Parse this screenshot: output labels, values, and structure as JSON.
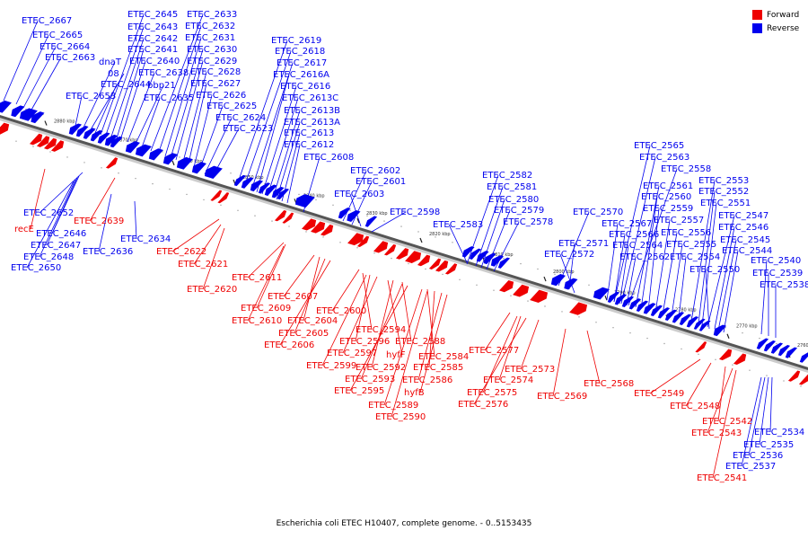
{
  "caption": "Escherichia coli ETEC H10407, complete genome. - 0..5153435",
  "colors": {
    "forward": "#ee0000",
    "reverse": "#0000ee",
    "backbone": "#888888"
  },
  "legend": [
    {
      "label": "Forward",
      "color": "#ee0000"
    },
    {
      "label": "Reverse",
      "color": "#0000ee"
    }
  ],
  "ticks": [
    "2880 kbp",
    "2870 kbp",
    "2860 kbp",
    "2850 kbp",
    "2840 kbp",
    "2830 kbp",
    "2820 kbp",
    "2810 kbp",
    "2800 kbp",
    "2790 kbp",
    "2780 kbp",
    "2770 kbp",
    "2760 kbp"
  ],
  "reverse_labels": [
    "ETEC_2667",
    "ETEC_2665",
    "ETEC_2664",
    "ETEC_2663",
    "ETEC_2653",
    "dnaT",
    "08",
    "ETEC_2644",
    "ETEC_2645",
    "ETEC_2643",
    "ETEC_2642",
    "ETEC_2641",
    "ETEC_2640",
    "ETEC_2638",
    "bbp21",
    "ETEC_2635",
    "ETEC_2633",
    "ETEC_2632",
    "ETEC_2631",
    "ETEC_2630",
    "ETEC_2629",
    "ETEC_2628",
    "ETEC_2627",
    "ETEC_2626",
    "ETEC_2625",
    "ETEC_2624",
    "ETEC_2623",
    "ETEC_2619",
    "ETEC_2618",
    "ETEC_2617",
    "ETEC_2616A",
    "ETEC_2616",
    "ETEC_2613C",
    "ETEC_2613B",
    "ETEC_2613A",
    "ETEC_2613",
    "ETEC_2612",
    "ETEC_2608",
    "ETEC_2602",
    "ETEC_2601",
    "ETEC_2603",
    "ETEC_2598",
    "ETEC_2583",
    "ETEC_2582",
    "ETEC_2581",
    "ETEC_2580",
    "ETEC_2579",
    "ETEC_2578",
    "ETEC_2570",
    "ETEC_2571",
    "ETEC_2572",
    "ETEC_2565",
    "ETEC_2563",
    "ETEC_2558",
    "ETEC_2561",
    "ETEC_2560",
    "ETEC_2559",
    "ETEC_2557",
    "ETEC_2556",
    "ETEC_2555",
    "ETEC_2554",
    "ETEC_2567",
    "ETEC_2566",
    "ETEC_2564",
    "ETEC_2562",
    "ETEC_2553",
    "ETEC_2552",
    "ETEC_2551",
    "ETEC_2547",
    "ETEC_2546",
    "ETEC_2545",
    "ETEC_2544",
    "ETEC_2550",
    "ETEC_2540",
    "ETEC_2539",
    "ETEC_2538",
    "ETEC_2652",
    "ETEC_2646",
    "ETEC_2647",
    "ETEC_2648",
    "ETEC_2650",
    "ETEC_2634",
    "ETEC_2636",
    "ETEC_2534",
    "ETEC_2535",
    "ETEC_2536",
    "ETEC_2537"
  ],
  "forward_labels": [
    "recE",
    "ETEC_2639",
    "ETEC_2622",
    "ETEC_2621",
    "ETEC_2620",
    "ETEC_2611",
    "ETEC_2609",
    "ETEC_2610",
    "ETEC_2607",
    "ETEC_2604",
    "ETEC_2605",
    "ETEC_2606",
    "ETEC_2600",
    "ETEC_2594",
    "ETEC_2596",
    "ETEC_2597",
    "hyfF",
    "ETEC_2588",
    "ETEC_2599",
    "ETEC_2592",
    "ETEC_2593",
    "ETEC_2595",
    "ETEC_2584",
    "ETEC_2585",
    "ETEC_2586",
    "hyfB",
    "ETEC_2589",
    "ETEC_2590",
    "ETEC_2577",
    "ETEC_2574",
    "ETEC_2573",
    "ETEC_2575",
    "ETEC_2576",
    "ETEC_2569",
    "ETEC_2568",
    "ETEC_2549",
    "ETEC_2548",
    "ETEC_2542",
    "ETEC_2543",
    "ETEC_2541"
  ]
}
